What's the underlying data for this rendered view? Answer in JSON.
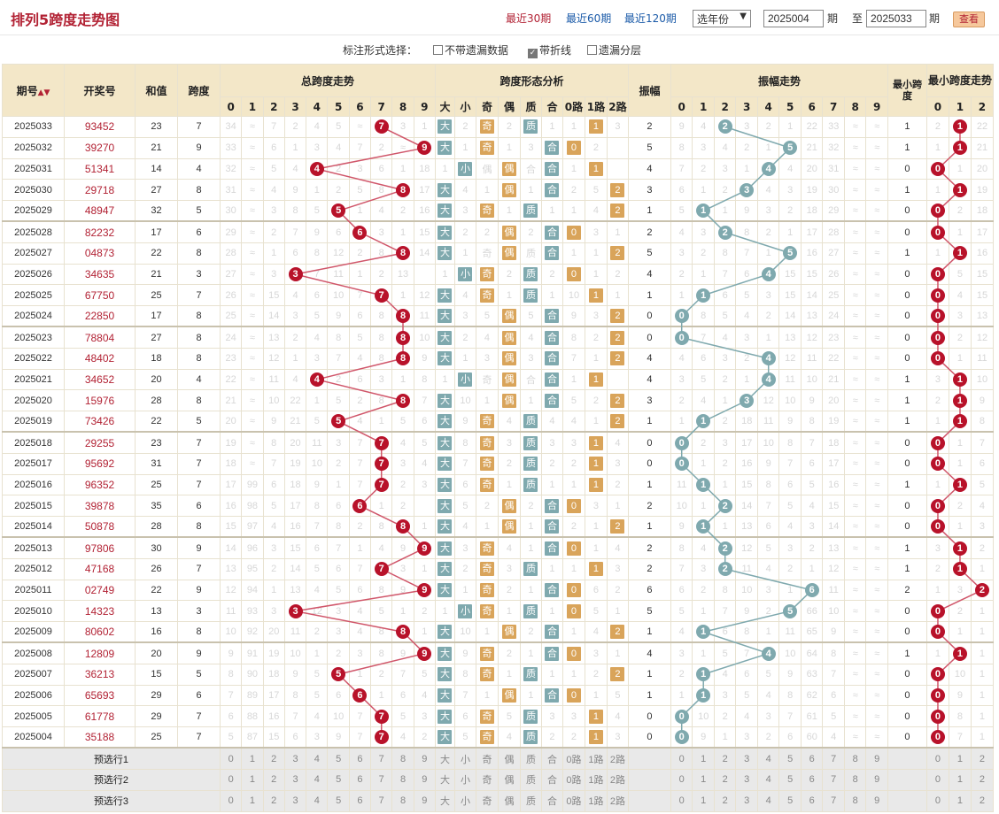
{
  "header": {
    "title": "排列5跨度走势图",
    "periods": [
      "最近30期",
      "最近60期",
      "最近120期"
    ],
    "year_select": "选年份",
    "from": "2025004",
    "to": "2025033",
    "qi": "期",
    "zhi": "至",
    "view_button": "查看"
  },
  "options": {
    "label": "标注形式选择：",
    "items": [
      {
        "label": "不带遗漏数据",
        "checked": false
      },
      {
        "label": "带折线",
        "checked": true
      },
      {
        "label": "遗漏分层",
        "checked": false
      }
    ]
  },
  "columns": {
    "qihao": "期号",
    "kaijiang": "开奖号",
    "hezhi": "和值",
    "kuadu": "跨度",
    "span_trend": "总跨度走势",
    "shape": "跨度形态分析",
    "zhenfu": "振幅",
    "zhenfu_trend": "振幅走势",
    "min_span": "最小跨度",
    "min_span_trend": "最小跨度走势",
    "shape_cols": [
      "大",
      "小",
      "奇",
      "偶",
      "质",
      "合",
      "0路",
      "1路",
      "2路"
    ]
  },
  "rows": [
    {
      "q": "2025033",
      "kj": "93452",
      "h": "23",
      "k": "7",
      "ko": [
        "34",
        "",
        "7",
        "2",
        "4",
        "5",
        "",
        "3",
        "1",
        "1"
      ],
      "sh": [
        "大",
        "2",
        "奇",
        "2",
        "质",
        "1",
        "1",
        "1",
        "3"
      ],
      "zf": "2",
      "zfo": [
        "9",
        "4",
        "2",
        "3",
        "2",
        "1",
        "22",
        "33",
        "",
        ""
      ],
      "mk": "1",
      "mo": [
        "2",
        "1",
        "22"
      ]
    },
    {
      "q": "2025032",
      "kj": "39270",
      "h": "21",
      "k": "9",
      "ko": [
        "33",
        "",
        "6",
        "1",
        "3",
        "4",
        "7",
        "2",
        "",
        "9"
      ],
      "sh": [
        "大",
        "1",
        "奇",
        "1",
        "3",
        "0",
        "1",
        "2"
      ],
      "zf": "5",
      "zfo": [
        "8",
        "3",
        "4",
        "2",
        "1",
        "5",
        "21",
        "32",
        "",
        ""
      ],
      "mk": "1",
      "mo": [
        "1",
        "1",
        "21"
      ]
    },
    {
      "q": "2025031",
      "kj": "51341",
      "h": "14",
      "k": "4",
      "ko": [
        "32",
        "",
        "5",
        "4",
        "2",
        "3",
        "6",
        "1",
        "18"
      ],
      "sh": [
        "1",
        "小",
        "偶",
        "2",
        "合",
        "3",
        "1",
        "1"
      ],
      "zf": "4",
      "zfo": [
        "7",
        "2",
        "3",
        "1",
        "4",
        "4",
        "20",
        "31",
        "",
        ""
      ],
      "mk": "0",
      "mo": [
        "0",
        "1",
        "20"
      ]
    },
    {
      "q": "2025030",
      "kj": "29718",
      "h": "27",
      "k": "8",
      "ko": [
        "31",
        "",
        "4",
        "9",
        "1",
        "2",
        "5",
        "8",
        "17"
      ],
      "sh": [
        "大",
        "4",
        "1",
        "偶",
        "1",
        "合",
        "2",
        "5",
        "2"
      ],
      "zf": "3",
      "zfo": [
        "6",
        "1",
        "2",
        "3",
        "4",
        "3",
        "19",
        "30",
        "",
        ""
      ],
      "mk": "1",
      "mo": [
        "1",
        "1",
        "19"
      ]
    },
    {
      "q": "2025029",
      "kj": "48947",
      "h": "32",
      "k": "5",
      "ko": [
        "30",
        "",
        "3",
        "8",
        "5",
        "1",
        "4",
        "2",
        "16"
      ],
      "sh": [
        "大",
        "3",
        "奇",
        "1",
        "质",
        "1",
        "1",
        "4",
        "2"
      ],
      "zf": "1",
      "zfo": [
        "5",
        "1",
        "1",
        "9",
        "3",
        "2",
        "18",
        "29",
        "",
        ""
      ],
      "mk": "0",
      "mo": [
        "0",
        "2",
        "18"
      ]
    },
    {
      "q": "2025028",
      "kj": "82232",
      "h": "17",
      "k": "6",
      "ko": [
        "29",
        "",
        "2",
        "7",
        "9",
        "6",
        "3",
        "1",
        "15"
      ],
      "sh": [
        "大",
        "2",
        "2",
        "偶",
        "2",
        "合",
        "0",
        "3",
        "1"
      ],
      "zf": "2",
      "zfo": [
        "4",
        "3",
        "2",
        "8",
        "2",
        "1",
        "17",
        "28",
        "",
        ""
      ],
      "mk": "0",
      "mo": [
        "0",
        "1",
        "17"
      ]
    },
    {
      "q": "2025027",
      "kj": "04873",
      "h": "22",
      "k": "8",
      "ko": [
        "28",
        "",
        "1",
        "6",
        "8",
        "12",
        "2",
        "8",
        "14"
      ],
      "sh": [
        "大",
        "1",
        "奇",
        "1",
        "质",
        "1",
        "1",
        "1",
        "2"
      ],
      "zf": "5",
      "zfo": [
        "3",
        "2",
        "8",
        "7",
        "1",
        "5",
        "16",
        "27",
        "",
        ""
      ],
      "mk": "1",
      "mo": [
        "1",
        "1",
        "16"
      ]
    },
    {
      "q": "2025026",
      "kj": "34635",
      "h": "21",
      "k": "3",
      "ko": [
        "27",
        "",
        "3",
        "7",
        "11",
        "1",
        "2",
        "13"
      ],
      "sh": [
        "1",
        "小",
        "奇",
        "2",
        "质",
        "2",
        "0",
        "1",
        "2"
      ],
      "zf": "4",
      "zfo": [
        "2",
        "1",
        "7",
        "6",
        "4",
        "15",
        "15",
        "26",
        "",
        ""
      ],
      "mk": "0",
      "mo": [
        "0",
        "5",
        "15"
      ]
    },
    {
      "q": "2025025",
      "kj": "67750",
      "h": "25",
      "k": "7",
      "ko": [
        "26",
        "",
        "15",
        "4",
        "6",
        "10",
        "7",
        "1",
        "12"
      ],
      "sh": [
        "大",
        "4",
        "奇",
        "1",
        "质",
        "1",
        "10",
        "1",
        "1"
      ],
      "zf": "1",
      "zfo": [
        "1",
        "1",
        "6",
        "5",
        "3",
        "15",
        "14",
        "25",
        "",
        ""
      ],
      "mk": "0",
      "mo": [
        "0",
        "4",
        "15"
      ]
    },
    {
      "q": "2025024",
      "kj": "22850",
      "h": "17",
      "k": "8",
      "ko": [
        "25",
        "",
        "14",
        "3",
        "5",
        "9",
        "6",
        "8",
        "11"
      ],
      "sh": [
        "大",
        "3",
        "5",
        "偶",
        "5",
        "合",
        "9",
        "3",
        "2"
      ],
      "zf": "0",
      "zfo": [
        "0",
        "8",
        "5",
        "4",
        "2",
        "14",
        "13",
        "24",
        "",
        ""
      ],
      "mk": "0",
      "mo": [
        "0",
        "3",
        "13"
      ]
    },
    {
      "q": "2025023",
      "kj": "78804",
      "h": "27",
      "k": "8",
      "ko": [
        "24",
        "",
        "13",
        "2",
        "4",
        "8",
        "5",
        "8",
        "10"
      ],
      "sh": [
        "大",
        "2",
        "4",
        "偶",
        "4",
        "合",
        "8",
        "2",
        "2"
      ],
      "zf": "0",
      "zfo": [
        "0",
        "7",
        "4",
        "3",
        "1",
        "13",
        "12",
        "23",
        "",
        ""
      ],
      "mk": "0",
      "mo": [
        "0",
        "2",
        "12"
      ]
    },
    {
      "q": "2025022",
      "kj": "48402",
      "h": "18",
      "k": "8",
      "ko": [
        "23",
        "",
        "12",
        "1",
        "3",
        "7",
        "4",
        "8",
        "9"
      ],
      "sh": [
        "大",
        "1",
        "3",
        "偶",
        "3",
        "合",
        "7",
        "1",
        "2"
      ],
      "zf": "4",
      "zfo": [
        "4",
        "6",
        "3",
        "2",
        "4",
        "12",
        "11",
        "22",
        "",
        ""
      ],
      "mk": "0",
      "mo": [
        "0",
        "1",
        "11"
      ]
    },
    {
      "q": "2025021",
      "kj": "34652",
      "h": "20",
      "k": "4",
      "ko": [
        "22",
        "",
        "11",
        "4",
        "2",
        "6",
        "3",
        "1",
        "8"
      ],
      "sh": [
        "1",
        "小",
        "奇",
        "2",
        "合",
        "6",
        "1",
        "1"
      ],
      "zf": "4",
      "zfo": [
        "3",
        "5",
        "2",
        "1",
        "4",
        "11",
        "10",
        "21",
        "",
        ""
      ],
      "mk": "1",
      "mo": [
        "3",
        "1",
        "10"
      ]
    },
    {
      "q": "2025020",
      "kj": "15976",
      "h": "28",
      "k": "8",
      "ko": [
        "21",
        "",
        "10",
        "22",
        "1",
        "5",
        "2",
        "8",
        "7"
      ],
      "sh": [
        "大",
        "10",
        "1",
        "偶",
        "1",
        "合",
        "5",
        "2",
        "2"
      ],
      "zf": "3",
      "zfo": [
        "2",
        "4",
        "1",
        "3",
        "12",
        "10",
        "9",
        "20",
        "",
        ""
      ],
      "mk": "1",
      "mo": [
        "2",
        "1",
        "9"
      ]
    },
    {
      "q": "2025019",
      "kj": "73426",
      "h": "22",
      "k": "5",
      "ko": [
        "20",
        "",
        "9",
        "21",
        "5",
        "4",
        "1",
        "5",
        "6"
      ],
      "sh": [
        "大",
        "9",
        "奇",
        "4",
        "质",
        "4",
        "4",
        "1",
        "2"
      ],
      "zf": "1",
      "zfo": [
        "1",
        "3",
        "2",
        "18",
        "11",
        "9",
        "8",
        "19",
        "",
        ""
      ],
      "mk": "1",
      "mo": [
        "1",
        "1",
        "8"
      ]
    },
    {
      "q": "2025018",
      "kj": "29255",
      "h": "23",
      "k": "7",
      "ko": [
        "19",
        "",
        "8",
        "20",
        "11",
        "3",
        "7",
        "4",
        "5"
      ],
      "sh": [
        "大",
        "8",
        "奇",
        "3",
        "质",
        "3",
        "3",
        "1",
        "4"
      ],
      "zf": "0",
      "zfo": [
        "0",
        "2",
        "3",
        "17",
        "10",
        "8",
        "7",
        "18",
        "",
        ""
      ],
      "mk": "0",
      "mo": [
        "0",
        "1",
        "7"
      ]
    },
    {
      "q": "2025017",
      "kj": "95692",
      "h": "31",
      "k": "7",
      "ko": [
        "18",
        "",
        "7",
        "19",
        "10",
        "2",
        "7",
        "3",
        "4"
      ],
      "sh": [
        "大",
        "7",
        "奇",
        "2",
        "质",
        "2",
        "2",
        "1",
        "3"
      ],
      "zf": "0",
      "zfo": [
        "0",
        "1",
        "2",
        "16",
        "9",
        "7",
        "6",
        "17",
        "",
        ""
      ],
      "mk": "0",
      "mo": [
        "0",
        "1",
        "6"
      ]
    },
    {
      "q": "2025016",
      "kj": "96352",
      "h": "25",
      "k": "7",
      "ko": [
        "17",
        "99",
        "6",
        "18",
        "9",
        "1",
        "7",
        "2",
        "3"
      ],
      "sh": [
        "大",
        "6",
        "奇",
        "1",
        "质",
        "1",
        "1",
        "1",
        "2"
      ],
      "zf": "1",
      "zfo": [
        "11",
        "1",
        "1",
        "15",
        "8",
        "6",
        "5",
        "16",
        "",
        ""
      ],
      "mk": "1",
      "mo": [
        "1",
        "1",
        "5"
      ]
    },
    {
      "q": "2025015",
      "kj": "39878",
      "h": "35",
      "k": "6",
      "ko": [
        "16",
        "98",
        "5",
        "17",
        "8",
        "6",
        "1",
        "2"
      ],
      "sh": [
        "大",
        "5",
        "2",
        "偶",
        "2",
        "合",
        "0",
        "3",
        "1"
      ],
      "zf": "2",
      "zfo": [
        "10",
        "1",
        "2",
        "14",
        "7",
        "5",
        "4",
        "15",
        "",
        ""
      ],
      "mk": "0",
      "mo": [
        "0",
        "2",
        "4"
      ]
    },
    {
      "q": "2025014",
      "kj": "50878",
      "h": "28",
      "k": "8",
      "ko": [
        "15",
        "97",
        "4",
        "16",
        "7",
        "8",
        "2",
        "8",
        "1"
      ],
      "sh": [
        "大",
        "4",
        "1",
        "偶",
        "1",
        "合",
        "2",
        "1",
        "2"
      ],
      "zf": "1",
      "zfo": [
        "9",
        "1",
        "1",
        "13",
        "6",
        "4",
        "3",
        "14",
        "",
        ""
      ],
      "mk": "0",
      "mo": [
        "0",
        "1",
        "3"
      ]
    },
    {
      "q": "2025013",
      "kj": "97806",
      "h": "30",
      "k": "9",
      "ko": [
        "14",
        "96",
        "3",
        "15",
        "6",
        "7",
        "1",
        "4",
        "9"
      ],
      "sh": [
        "大",
        "3",
        "奇",
        "4",
        "1",
        "合",
        "0",
        "1",
        "4"
      ],
      "zf": "2",
      "zfo": [
        "8",
        "4",
        "2",
        "12",
        "5",
        "3",
        "2",
        "13",
        "",
        ""
      ],
      "mk": "1",
      "mo": [
        "3",
        "1",
        "2"
      ]
    },
    {
      "q": "2025012",
      "kj": "47168",
      "h": "26",
      "k": "7",
      "ko": [
        "13",
        "95",
        "2",
        "14",
        "5",
        "6",
        "7",
        "3",
        "1"
      ],
      "sh": [
        "大",
        "2",
        "奇",
        "3",
        "质",
        "1",
        "1",
        "1",
        "3"
      ],
      "zf": "2",
      "zfo": [
        "7",
        "3",
        "2",
        "11",
        "4",
        "2",
        "1",
        "12",
        "",
        ""
      ],
      "mk": "1",
      "mo": [
        "2",
        "1",
        "1"
      ]
    },
    {
      "q": "2025011",
      "kj": "02749",
      "h": "22",
      "k": "9",
      "ko": [
        "12",
        "94",
        "1",
        "13",
        "4",
        "5",
        "6",
        "8",
        "9"
      ],
      "sh": [
        "大",
        "1",
        "奇",
        "2",
        "1",
        "合",
        "0",
        "6",
        "2"
      ],
      "zf": "6",
      "zfo": [
        "6",
        "2",
        "8",
        "10",
        "3",
        "1",
        "6",
        "11",
        "",
        ""
      ],
      "mk": "2",
      "mo": [
        "1",
        "3",
        "2"
      ]
    },
    {
      "q": "2025010",
      "kj": "14323",
      "h": "13",
      "k": "3",
      "ko": [
        "11",
        "93",
        "3",
        "12",
        "3",
        "4",
        "5",
        "1",
        "2"
      ],
      "sh": [
        "1",
        "小",
        "奇",
        "1",
        "质",
        "1",
        "0",
        "5",
        "1"
      ],
      "zf": "5",
      "zfo": [
        "5",
        "1",
        "7",
        "9",
        "2",
        "5",
        "66",
        "10",
        "",
        ""
      ],
      "mk": "0",
      "mo": [
        "0",
        "2",
        "1"
      ]
    },
    {
      "q": "2025009",
      "kj": "80602",
      "h": "16",
      "k": "8",
      "ko": [
        "10",
        "92",
        "20",
        "11",
        "2",
        "3",
        "4",
        "8",
        "1"
      ],
      "sh": [
        "大",
        "10",
        "1",
        "偶",
        "2",
        "合",
        "1",
        "4",
        "2"
      ],
      "zf": "1",
      "zfo": [
        "4",
        "1",
        "6",
        "8",
        "1",
        "11",
        "65",
        "9",
        "",
        ""
      ],
      "mk": "0",
      "mo": [
        "0",
        "1",
        "1"
      ]
    },
    {
      "q": "2025008",
      "kj": "12809",
      "h": "20",
      "k": "9",
      "ko": [
        "9",
        "91",
        "19",
        "10",
        "1",
        "2",
        "3",
        "8",
        "9"
      ],
      "sh": [
        "大",
        "9",
        "奇",
        "2",
        "1",
        "合",
        "0",
        "3",
        "1"
      ],
      "zf": "4",
      "zfo": [
        "3",
        "1",
        "5",
        "7",
        "4",
        "10",
        "64",
        "8",
        "",
        ""
      ],
      "mk": "1",
      "mo": [
        "1",
        "1",
        "1"
      ]
    },
    {
      "q": "2025007",
      "kj": "36213",
      "h": "15",
      "k": "5",
      "ko": [
        "8",
        "90",
        "18",
        "9",
        "5",
        "1",
        "2",
        "7",
        "5"
      ],
      "sh": [
        "大",
        "8",
        "奇",
        "1",
        "质",
        "1",
        "1",
        "2",
        "2"
      ],
      "zf": "1",
      "zfo": [
        "2",
        "1",
        "4",
        "6",
        "5",
        "9",
        "63",
        "7",
        "",
        ""
      ],
      "mk": "0",
      "mo": [
        "0",
        "10",
        "1"
      ]
    },
    {
      "q": "2025006",
      "kj": "65693",
      "h": "29",
      "k": "6",
      "ko": [
        "7",
        "89",
        "17",
        "8",
        "5",
        "6",
        "1",
        "6",
        "4"
      ],
      "sh": [
        "大",
        "7",
        "1",
        "偶",
        "1",
        "合",
        "0",
        "1",
        "5"
      ],
      "zf": "1",
      "zfo": [
        "1",
        "1",
        "3",
        "5",
        "4",
        "8",
        "62",
        "6",
        "",
        ""
      ],
      "mk": "0",
      "mo": [
        "0",
        "9",
        "1"
      ]
    },
    {
      "q": "2025005",
      "kj": "61778",
      "h": "29",
      "k": "7",
      "ko": [
        "6",
        "88",
        "16",
        "7",
        "4",
        "10",
        "7",
        "5",
        "3"
      ],
      "sh": [
        "大",
        "6",
        "奇",
        "5",
        "质",
        "3",
        "3",
        "1",
        "4"
      ],
      "zf": "0",
      "zfo": [
        "0",
        "10",
        "2",
        "4",
        "3",
        "7",
        "61",
        "5",
        "",
        ""
      ],
      "mk": "0",
      "mo": [
        "0",
        "8",
        "1"
      ]
    },
    {
      "q": "2025004",
      "kj": "35188",
      "h": "25",
      "k": "7",
      "ko": [
        "5",
        "87",
        "15",
        "6",
        "3",
        "9",
        "7",
        "4",
        "2"
      ],
      "sh": [
        "大",
        "5",
        "奇",
        "4",
        "质",
        "2",
        "2",
        "1",
        "3"
      ],
      "zf": "0",
      "zfo": [
        "0",
        "9",
        "1",
        "3",
        "2",
        "6",
        "60",
        "4",
        "",
        ""
      ],
      "mk": "0",
      "mo": [
        "0",
        "7",
        "1"
      ]
    }
  ],
  "preselect": [
    "预选行1",
    "预选行2",
    "预选行3"
  ],
  "digits10": [
    "0",
    "1",
    "2",
    "3",
    "4",
    "5",
    "6",
    "7",
    "8",
    "9"
  ],
  "digits3": [
    "0",
    "1",
    "2"
  ],
  "colors": {
    "accent": "#b22234",
    "link": "#1a5aa8",
    "header_bg": "#f3e7c8",
    "red_ball": "#b8122a",
    "teal": "#7fa9ae",
    "gold": "#d9a45a"
  }
}
